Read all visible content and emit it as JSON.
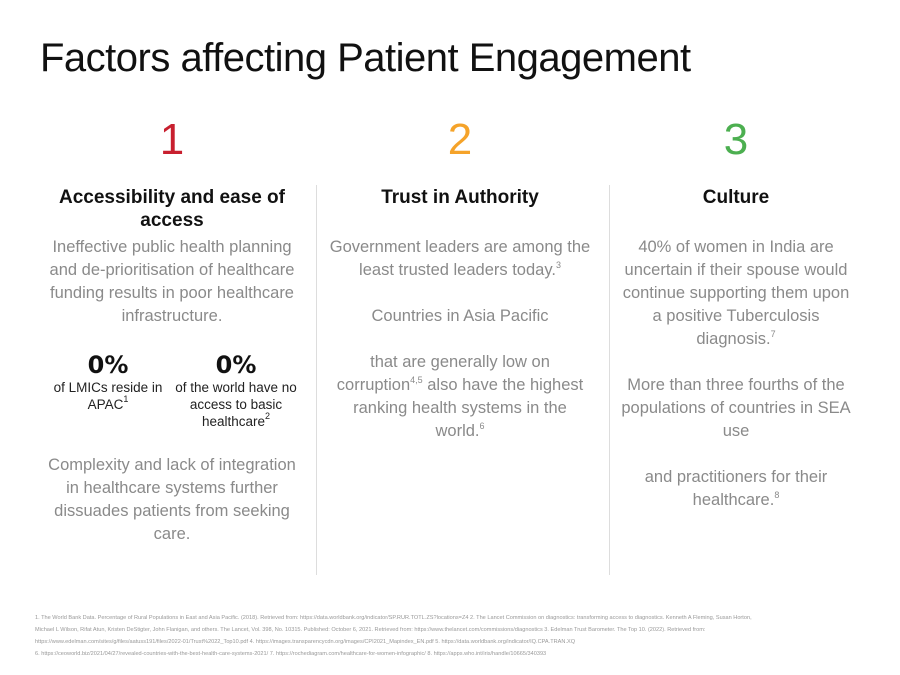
{
  "title": "Factors affecting Patient Engagement",
  "columns": [
    {
      "number": "1",
      "color": "#c8202f",
      "heading": "Accessibility and ease of access",
      "paragraphs": [
        [
          {
            "text": "Ineffective public health planning and de-prioritisation of healthcare funding results in poor healthcare infrastructure."
          }
        ]
      ],
      "stats": [
        {
          "value": "0%",
          "caption": [
            {
              "text": "of LMICs reside in APAC"
            },
            {
              "sup": "1"
            }
          ]
        },
        {
          "value": "0%",
          "caption": [
            {
              "text": "of the world have no access to basic healthcare"
            },
            {
              "sup": "2"
            }
          ]
        }
      ],
      "closing": [
        [
          {
            "text": "Complexity and lack of integration in healthcare systems further dissuades patients from seeking care."
          }
        ]
      ]
    },
    {
      "number": "2",
      "color": "#f5a32a",
      "heading": "Trust in Authority",
      "paragraphs": [
        [
          {
            "text": "Government leaders are among the least trusted leaders today."
          },
          {
            "sup": "3"
          }
        ],
        [
          {
            "text": "Countries in Asia Pacific"
          }
        ],
        [
          {
            "text": "that are generally low on corruption"
          },
          {
            "sup": "4,5"
          },
          {
            "text": " also have the highest ranking health systems in the world."
          },
          {
            "sup": "6"
          }
        ]
      ]
    },
    {
      "number": "3",
      "color": "#4caf50",
      "heading": "Culture",
      "paragraphs": [
        [
          {
            "text": "40% of women in India are uncertain if their spouse would continue supporting them upon a positive Tuberculosis diagnosis."
          },
          {
            "sup": "7"
          }
        ],
        [
          {
            "text": "More than three fourths of the populations of countries in SEA use"
          }
        ],
        [
          {
            "text": "and practitioners for their healthcare."
          },
          {
            "sup": "8"
          }
        ]
      ]
    }
  ],
  "footnotes": [
    "1. The World Bank Data. Percentage of Rural Populations in East and Asia Pacific. (2018). Retrieved from: https://data.worldbank.org/indicator/SP.RUR.TOTL.ZS?locations=Z4 2. The Lancet Commission on diagnostics: transforming access to diagnostics. Kenneth A Fleming, Susan Horton,",
    "Michael L Wilson, Rifat Atun, Kristen DeStigter, John Flanigan, and others. The Lancet, Vol. 398, No. 10315. Published: October 6, 2021. Retrieved from: https://www.thelancet.com/commissions/diagnostics 3. Edelman Trust Barometer. The Top 10. (2022). Retrieved from:",
    "https://www.edelman.com/sites/g/files/aatuss191/files/2022-01/Trust%2022_Top10.pdf 4. https://images.transparencycdn.org/images/CPI2021_Mapindex_EN.pdf 5. https://data.worldbank.org/indicator/IQ.CPA.TRAN.XQ",
    "6. https://ceoworld.biz/2021/04/27/revealed-countries-with-the-best-health-care-systems-2021/ 7. https://rochediagram.com/healthcare-for-women-infographic/ 8. https://apps.who.int/iris/handle/10665/340393"
  ]
}
